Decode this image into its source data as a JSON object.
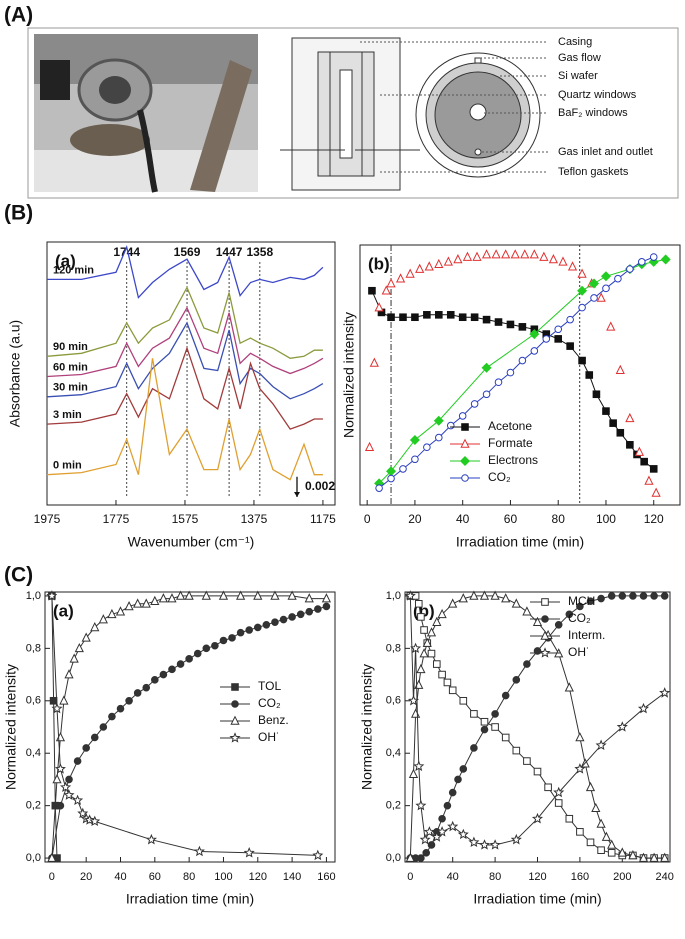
{
  "panel_labels": [
    "(A)",
    "(B)",
    "(C)"
  ],
  "diagram": {
    "labels": [
      "Casing",
      "Gas flow",
      "Si wafer",
      "Quartz windows",
      "BaF₂ windows",
      "Gas inlet and outlet",
      "Teflon gaskets"
    ]
  },
  "chart_data": [
    {
      "type": "line",
      "title": "(a)",
      "x_label": "Wavenumber (cm⁻¹)",
      "y_label": "Absorbance (a.u)",
      "x": [
        1975,
        1875,
        1775,
        1744,
        1710,
        1669,
        1620,
        1569,
        1520,
        1480,
        1447,
        1415,
        1385,
        1358,
        1320,
        1270,
        1230,
        1200,
        1175
      ],
      "xlim": [
        1975,
        1140
      ],
      "xticks": [
        1975,
        1775,
        1575,
        1375,
        1175
      ],
      "ylim": [
        0,
        0.026
      ],
      "legend": "inline",
      "peaks": [
        1744,
        1569,
        1447,
        1358
      ],
      "scale_bar": 0.002,
      "series": [
        {
          "name": "120 min",
          "color": "#3d48c9",
          "values": [
            0.0223,
            0.0223,
            0.023,
            0.0255,
            0.0205,
            0.022,
            0.0233,
            0.0243,
            0.0213,
            0.022,
            0.0245,
            0.0207,
            0.022,
            0.0223,
            0.022,
            0.0225,
            0.0223,
            0.0227,
            0.0235
          ]
        },
        {
          "name": "90 min",
          "color": "#8b9a3c",
          "values": [
            0.0147,
            0.015,
            0.016,
            0.018,
            0.016,
            0.0175,
            0.0183,
            0.0215,
            0.0175,
            0.017,
            0.021,
            0.016,
            0.0165,
            0.016,
            0.0155,
            0.0145,
            0.0147,
            0.0153,
            0.0153
          ]
        },
        {
          "name": "60 min",
          "color": "#b0407c",
          "values": [
            0.0127,
            0.0129,
            0.0137,
            0.016,
            0.0137,
            0.0155,
            0.0165,
            0.0195,
            0.0155,
            0.015,
            0.019,
            0.014,
            0.015,
            0.0145,
            0.0137,
            0.013,
            0.0135,
            0.014,
            0.0145
          ]
        },
        {
          "name": "30 min",
          "color": "#3a4fb3",
          "values": [
            0.0107,
            0.0109,
            0.0117,
            0.014,
            0.0115,
            0.0135,
            0.015,
            0.018,
            0.0135,
            0.0133,
            0.0173,
            0.012,
            0.0135,
            0.013,
            0.0117,
            0.0105,
            0.011,
            0.0115,
            0.012
          ]
        },
        {
          "name": "3 min",
          "color": "#a23b3b",
          "values": [
            0.008,
            0.0082,
            0.009,
            0.011,
            0.0087,
            0.0115,
            0.0105,
            0.0155,
            0.0105,
            0.0095,
            0.0135,
            0.0095,
            0.014,
            0.0115,
            0.01,
            0.0075,
            0.008,
            0.0085,
            0.0085
          ]
        },
        {
          "name": "0 min",
          "color": "#e0a030",
          "values": [
            0.003,
            0.0032,
            0.004,
            0.0065,
            0.003,
            0.0145,
            0.005,
            0.0075,
            0.0035,
            0.0035,
            0.0085,
            0.0035,
            0.005,
            0.0075,
            0.0035,
            0.0025,
            0.006,
            0.003,
            0.003
          ]
        }
      ]
    },
    {
      "type": "scatter",
      "title": "(b)",
      "x_label": "Irradiation time (min)",
      "y_label": "Normalized intensity",
      "xlim": [
        -3,
        131
      ],
      "xticks": [
        0,
        20,
        40,
        60,
        80,
        100,
        120
      ],
      "ylim": [
        -0.04,
        1.04
      ],
      "legend": "lower center",
      "vlines": [
        10,
        89
      ],
      "series": [
        {
          "name": "Acetone",
          "color": "#111111",
          "marker": "square",
          "open": false,
          "line": true,
          "x": [
            2,
            6,
            10,
            15,
            20,
            25,
            30,
            35,
            40,
            45,
            50,
            55,
            60,
            65,
            70,
            75,
            80,
            85,
            90,
            93,
            96,
            100,
            103,
            106,
            110,
            113,
            116,
            120
          ],
          "values": [
            0.85,
            0.76,
            0.74,
            0.74,
            0.74,
            0.75,
            0.75,
            0.75,
            0.74,
            0.74,
            0.73,
            0.72,
            0.71,
            0.7,
            0.69,
            0.67,
            0.65,
            0.62,
            0.56,
            0.5,
            0.42,
            0.35,
            0.3,
            0.26,
            0.21,
            0.17,
            0.14,
            0.11
          ]
        },
        {
          "name": "Formate",
          "color": "#e03030",
          "marker": "triangle",
          "open": true,
          "line": false,
          "x": [
            1,
            3,
            5,
            8,
            10,
            14,
            18,
            22,
            26,
            30,
            34,
            38,
            42,
            46,
            50,
            54,
            58,
            62,
            66,
            70,
            74,
            78,
            82,
            86,
            90,
            94,
            98,
            102,
            106,
            110,
            114,
            118,
            121
          ],
          "values": [
            0.2,
            0.55,
            0.78,
            0.85,
            0.88,
            0.9,
            0.92,
            0.94,
            0.95,
            0.96,
            0.97,
            0.98,
            0.99,
            0.99,
            1.0,
            1.0,
            1.0,
            1.0,
            1.0,
            1.0,
            0.99,
            0.98,
            0.97,
            0.95,
            0.92,
            0.88,
            0.82,
            0.7,
            0.52,
            0.32,
            0.18,
            0.06,
            0.01
          ]
        },
        {
          "name": "Electrons",
          "color": "#22cc22",
          "marker": "diamond",
          "open": false,
          "line": true,
          "x": [
            5,
            10,
            20,
            30,
            50,
            70,
            90,
            95,
            100,
            110,
            115,
            120,
            125
          ],
          "values": [
            0.05,
            0.1,
            0.23,
            0.31,
            0.53,
            0.67,
            0.85,
            0.88,
            0.91,
            0.94,
            0.96,
            0.97,
            0.98
          ]
        },
        {
          "name": "CO₂",
          "color": "#2a3fbf",
          "marker": "circle",
          "open": true,
          "line": true,
          "x": [
            5,
            10,
            15,
            20,
            25,
            30,
            35,
            40,
            45,
            50,
            55,
            60,
            65,
            70,
            75,
            80,
            85,
            90,
            95,
            100,
            105,
            110,
            115,
            120
          ],
          "values": [
            0.03,
            0.07,
            0.11,
            0.15,
            0.2,
            0.24,
            0.29,
            0.33,
            0.38,
            0.42,
            0.47,
            0.51,
            0.56,
            0.6,
            0.65,
            0.69,
            0.73,
            0.78,
            0.82,
            0.86,
            0.9,
            0.94,
            0.97,
            0.99
          ]
        }
      ]
    },
    {
      "type": "scatter",
      "title": "(a)",
      "x_label": "Irradiation time (min)",
      "y_label": "Normalized intensity",
      "xlim": [
        -4,
        165
      ],
      "xticks": [
        0,
        20,
        40,
        60,
        80,
        100,
        120,
        140,
        160
      ],
      "ylim": [
        -0.015,
        1.015
      ],
      "yticks": [
        {
          "value": 0,
          "label": "0,0"
        },
        {
          "value": 0.2,
          "label": "0,2"
        },
        {
          "value": 0.4,
          "label": "0,4"
        },
        {
          "value": 0.6,
          "label": "0,6"
        },
        {
          "value": 0.8,
          "label": "0,8"
        },
        {
          "value": 1.0,
          "label": "1,0"
        }
      ],
      "legend": "center right",
      "series": [
        {
          "name": "TOL",
          "color": "#333333",
          "marker": "square",
          "open": false,
          "line": true,
          "x": [
            0,
            1,
            2,
            3
          ],
          "values": [
            1,
            0.6,
            0.2,
            0
          ]
        },
        {
          "name": "CO₂",
          "color": "#333333",
          "marker": "circle",
          "open": false,
          "line": true,
          "x": [
            0,
            5,
            10,
            15,
            20,
            25,
            30,
            35,
            40,
            45,
            50,
            55,
            60,
            65,
            70,
            75,
            80,
            85,
            90,
            95,
            100,
            105,
            110,
            115,
            120,
            125,
            130,
            135,
            140,
            145,
            150,
            155,
            160
          ],
          "values": [
            0,
            0.2,
            0.3,
            0.37,
            0.42,
            0.46,
            0.5,
            0.54,
            0.57,
            0.6,
            0.63,
            0.65,
            0.68,
            0.7,
            0.72,
            0.74,
            0.76,
            0.78,
            0.8,
            0.81,
            0.83,
            0.84,
            0.86,
            0.87,
            0.88,
            0.89,
            0.9,
            0.91,
            0.92,
            0.93,
            0.94,
            0.95,
            0.96
          ]
        },
        {
          "name": "Benz.",
          "color": "#333333",
          "marker": "triangle",
          "open": true,
          "line": true,
          "x": [
            0,
            3,
            5,
            7,
            10,
            13,
            16,
            20,
            25,
            30,
            35,
            40,
            45,
            50,
            55,
            60,
            65,
            70,
            75,
            80,
            90,
            100,
            110,
            120,
            130,
            140,
            150,
            160
          ],
          "values": [
            0,
            0.3,
            0.46,
            0.6,
            0.7,
            0.76,
            0.8,
            0.84,
            0.88,
            0.91,
            0.93,
            0.94,
            0.96,
            0.97,
            0.97,
            0.98,
            0.99,
            0.99,
            1.0,
            1.0,
            1.0,
            1.0,
            1.0,
            1.0,
            1.0,
            1.0,
            0.99,
            0.99
          ]
        },
        {
          "name": "OH˙",
          "color": "#333333",
          "marker": "star",
          "open": true,
          "line": true,
          "x": [
            0,
            3,
            5,
            8,
            10,
            15,
            18,
            20,
            22,
            25,
            58,
            86,
            115,
            155
          ],
          "values": [
            1,
            0.57,
            0.34,
            0.27,
            0.24,
            0.22,
            0.17,
            0.15,
            0.145,
            0.14,
            0.07,
            0.025,
            0.02,
            0.01
          ]
        }
      ]
    },
    {
      "type": "scatter",
      "title": "(b)",
      "x_label": "Irradiation time (min)",
      "y_label": "Normalized intensity",
      "xlim": [
        -5,
        245
      ],
      "xticks": [
        0,
        40,
        80,
        120,
        160,
        200,
        240
      ],
      "ylim": [
        -0.015,
        1.015
      ],
      "yticks": [
        {
          "value": 0,
          "label": "0,0"
        },
        {
          "value": 0.2,
          "label": "0,2"
        },
        {
          "value": 0.4,
          "label": "0,4"
        },
        {
          "value": 0.6,
          "label": "0,6"
        },
        {
          "value": 0.8,
          "label": "0,8"
        },
        {
          "value": 1.0,
          "label": "1,0"
        }
      ],
      "legend": "upper right",
      "series": [
        {
          "name": "MCH",
          "color": "#333333",
          "marker": "square",
          "open": true,
          "line": true,
          "x": [
            0,
            3,
            5,
            8,
            10,
            13,
            16,
            20,
            25,
            30,
            35,
            40,
            50,
            60,
            70,
            80,
            90,
            100,
            110,
            120,
            130,
            140,
            150,
            160,
            170,
            180,
            190,
            200,
            210,
            220,
            230,
            240
          ],
          "values": [
            1,
            1,
            1,
            0.97,
            0.92,
            0.87,
            0.82,
            0.78,
            0.74,
            0.7,
            0.67,
            0.64,
            0.6,
            0.55,
            0.52,
            0.5,
            0.46,
            0.41,
            0.37,
            0.33,
            0.27,
            0.21,
            0.15,
            0.1,
            0.06,
            0.03,
            0.02,
            0.01,
            0.01,
            0,
            0,
            0
          ]
        },
        {
          "name": "CO₂",
          "color": "#333333",
          "marker": "circle",
          "open": false,
          "line": true,
          "x": [
            0,
            5,
            10,
            15,
            20,
            25,
            30,
            35,
            40,
            45,
            50,
            60,
            70,
            80,
            90,
            100,
            110,
            120,
            130,
            140,
            150,
            160,
            170,
            180,
            190,
            200,
            210,
            220,
            230,
            240
          ],
          "values": [
            0,
            0,
            0,
            0.02,
            0.05,
            0.1,
            0.15,
            0.2,
            0.25,
            0.3,
            0.34,
            0.42,
            0.49,
            0.55,
            0.62,
            0.68,
            0.74,
            0.79,
            0.84,
            0.89,
            0.93,
            0.96,
            0.98,
            0.99,
            1,
            1,
            1,
            1,
            1,
            1
          ]
        },
        {
          "name": "Interm.",
          "color": "#333333",
          "marker": "triangle",
          "open": true,
          "line": true,
          "x": [
            0,
            3,
            5,
            8,
            10,
            13,
            16,
            20,
            25,
            30,
            40,
            50,
            60,
            70,
            80,
            90,
            100,
            110,
            120,
            130,
            140,
            150,
            160,
            165,
            170,
            175,
            180,
            185,
            190,
            200,
            210,
            220,
            230,
            240
          ],
          "values": [
            0,
            0.32,
            0.55,
            0.66,
            0.72,
            0.78,
            0.82,
            0.86,
            0.9,
            0.93,
            0.97,
            0.99,
            1,
            1,
            1,
            0.99,
            0.97,
            0.94,
            0.9,
            0.85,
            0.78,
            0.65,
            0.46,
            0.36,
            0.27,
            0.19,
            0.13,
            0.08,
            0.05,
            0.02,
            0.01,
            0,
            0,
            0
          ]
        },
        {
          "name": "OH˙",
          "color": "#333333",
          "marker": "star",
          "open": true,
          "line": true,
          "x": [
            0,
            3,
            5,
            8,
            10,
            14,
            18,
            25,
            30,
            40,
            50,
            60,
            70,
            80,
            100,
            120,
            140,
            160,
            180,
            200,
            220,
            240
          ],
          "values": [
            1,
            0.6,
            0.8,
            0.35,
            0.2,
            0.07,
            0.1,
            0.08,
            0.1,
            0.12,
            0.09,
            0.06,
            0.05,
            0.05,
            0.07,
            0.15,
            0.25,
            0.34,
            0.43,
            0.5,
            0.57,
            0.63
          ]
        }
      ]
    }
  ]
}
